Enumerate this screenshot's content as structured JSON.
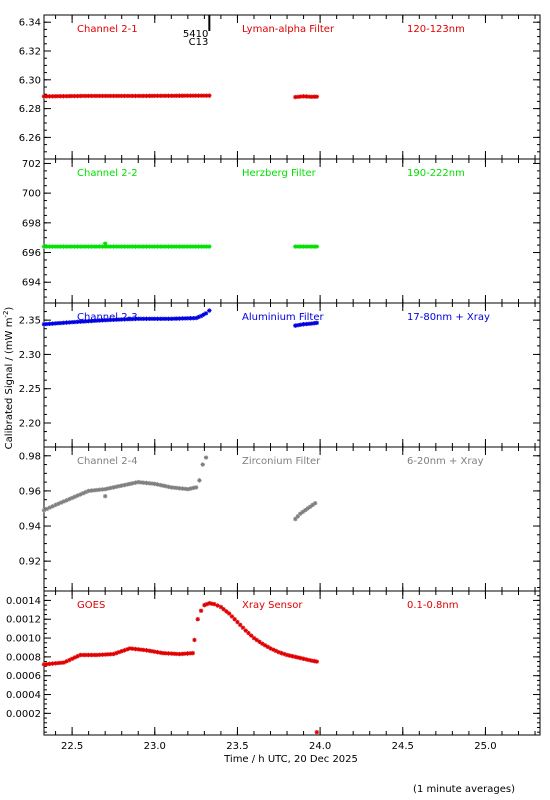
{
  "figure": {
    "ylabel": "Calibrated Signal / (mW m",
    "ylabel_sup": "-2",
    "ylabel_end": ")",
    "xlabel": "Time / h UTC, 20 Dec 2025",
    "footnote": "(1 minute averages)",
    "marker_label_top": "5410",
    "marker_label_bottom": "C13",
    "marker_time": 23.33,
    "xlim": [
      22.33,
      25.33
    ],
    "x_ticks": [
      22.5,
      23.0,
      23.5,
      24.0,
      24.5,
      25.0
    ],
    "x_tick_labels": [
      "22.5",
      "23.0",
      "23.5",
      "24.0",
      "24.5",
      "25.0"
    ]
  },
  "chart_data": [
    {
      "type": "scatter",
      "channel": "Channel 2-1",
      "filter": "Lyman-alpha Filter",
      "band": "120-123nm",
      "color": "#e00000",
      "ylim": [
        6.245,
        6.345
      ],
      "y_ticks": [
        6.26,
        6.28,
        6.3,
        6.32,
        6.34
      ],
      "y_tick_labels": [
        "6.26",
        "6.28",
        "6.30",
        "6.32",
        "6.34"
      ],
      "segments": [
        {
          "x": [
            22.33,
            22.6,
            22.9,
            23.1,
            23.33
          ],
          "y": [
            6.2885,
            6.2888,
            6.2888,
            6.2889,
            6.289
          ]
        },
        {
          "x": [
            23.85,
            23.9,
            23.95,
            23.98
          ],
          "y": [
            6.288,
            6.2885,
            6.2882,
            6.2883
          ]
        }
      ],
      "outliers": []
    },
    {
      "type": "scatter",
      "channel": "Channel 2-2",
      "filter": "Herzberg Filter",
      "band": "190-222nm",
      "color": "#00e000",
      "ylim": [
        692.6,
        702.3
      ],
      "y_ticks": [
        694,
        696,
        698,
        700,
        702
      ],
      "y_tick_labels": [
        "694",
        "696",
        "698",
        "700",
        "702"
      ],
      "segments": [
        {
          "x": [
            22.33,
            22.6,
            22.9,
            23.1,
            23.33
          ],
          "y": [
            696.4,
            696.4,
            696.4,
            696.4,
            696.4
          ]
        },
        {
          "x": [
            23.85,
            23.9,
            23.95,
            23.98
          ],
          "y": [
            696.4,
            696.4,
            696.4,
            696.4
          ]
        }
      ],
      "outliers": [
        {
          "x": 22.7,
          "y": 696.6
        }
      ]
    },
    {
      "type": "scatter",
      "channel": "Channel 2-3",
      "filter": "Aluminium Filter",
      "band": "17-80nm + Xray",
      "color": "#0000e0",
      "ylim": [
        2.165,
        2.375
      ],
      "y_ticks": [
        2.2,
        2.25,
        2.3,
        2.35
      ],
      "y_tick_labels": [
        "2.20",
        "2.25",
        "2.30",
        "2.35"
      ],
      "segments": [
        {
          "x": [
            22.33,
            22.5,
            22.7,
            22.9,
            23.1,
            23.25,
            23.28,
            23.31,
            23.33
          ],
          "y": [
            2.344,
            2.347,
            2.35,
            2.352,
            2.352,
            2.353,
            2.356,
            2.36,
            2.364
          ]
        },
        {
          "x": [
            23.85,
            23.9,
            23.95,
            23.98
          ],
          "y": [
            2.342,
            2.344,
            2.345,
            2.346
          ]
        }
      ],
      "outliers": []
    },
    {
      "type": "scatter",
      "channel": "Channel 2-4",
      "filter": "Zirconium Filter",
      "band": "6-20nm + Xray",
      "color": "#808080",
      "ylim": [
        0.903,
        0.985
      ],
      "y_ticks": [
        0.92,
        0.94,
        0.96,
        0.98
      ],
      "y_tick_labels": [
        "0.92",
        "0.94",
        "0.96",
        "0.98"
      ],
      "segments": [
        {
          "x": [
            22.33,
            22.4,
            22.5,
            22.6,
            22.7,
            22.8,
            22.9,
            23.0,
            23.1,
            23.2,
            23.25
          ],
          "y": [
            0.949,
            0.952,
            0.956,
            0.96,
            0.961,
            0.963,
            0.965,
            0.964,
            0.962,
            0.961,
            0.962
          ]
        },
        {
          "x": [
            23.85,
            23.88,
            23.91,
            23.94,
            23.97
          ],
          "y": [
            0.944,
            0.947,
            0.949,
            0.951,
            0.953
          ]
        }
      ],
      "outliers": [
        {
          "x": 22.7,
          "y": 0.957
        },
        {
          "x": 23.27,
          "y": 0.966
        },
        {
          "x": 23.29,
          "y": 0.975
        },
        {
          "x": 23.31,
          "y": 0.979
        }
      ]
    },
    {
      "type": "scatter",
      "channel": "GOES",
      "filter": "Xray Sensor",
      "band": "0.1-0.8nm",
      "color": "#e00000",
      "ylim": [
        -3e-05,
        0.0015
      ],
      "y_ticks": [
        0.0002,
        0.0004,
        0.0006,
        0.0008,
        0.001,
        0.0012,
        0.0014
      ],
      "y_tick_labels": [
        "0.0002",
        "0.0004",
        "0.0006",
        "0.0008",
        "0.0010",
        "0.0012",
        "0.0014"
      ],
      "segments": [
        {
          "x": [
            22.33,
            22.45,
            22.55,
            22.65,
            22.75,
            22.85,
            22.95,
            23.05,
            23.15,
            23.23
          ],
          "y": [
            0.00072,
            0.00074,
            0.00082,
            0.00082,
            0.00083,
            0.00089,
            0.00087,
            0.00084,
            0.00083,
            0.00084
          ]
        },
        {
          "x": [
            23.24,
            23.26,
            23.28,
            23.3,
            23.33,
            23.36,
            23.4,
            23.45,
            23.5,
            23.55,
            23.6,
            23.65,
            23.7,
            23.75,
            23.8,
            23.85,
            23.9,
            23.95,
            23.98
          ],
          "y": [
            0.00098,
            0.0012,
            0.00129,
            0.00135,
            0.00137,
            0.00136,
            0.00133,
            0.00126,
            0.00117,
            0.00108,
            0.001,
            0.00094,
            0.00089,
            0.00085,
            0.00082,
            0.0008,
            0.00078,
            0.00076,
            0.00075
          ]
        }
      ],
      "outliers": [
        {
          "x": 23.98,
          "y": 0.0
        }
      ]
    }
  ]
}
